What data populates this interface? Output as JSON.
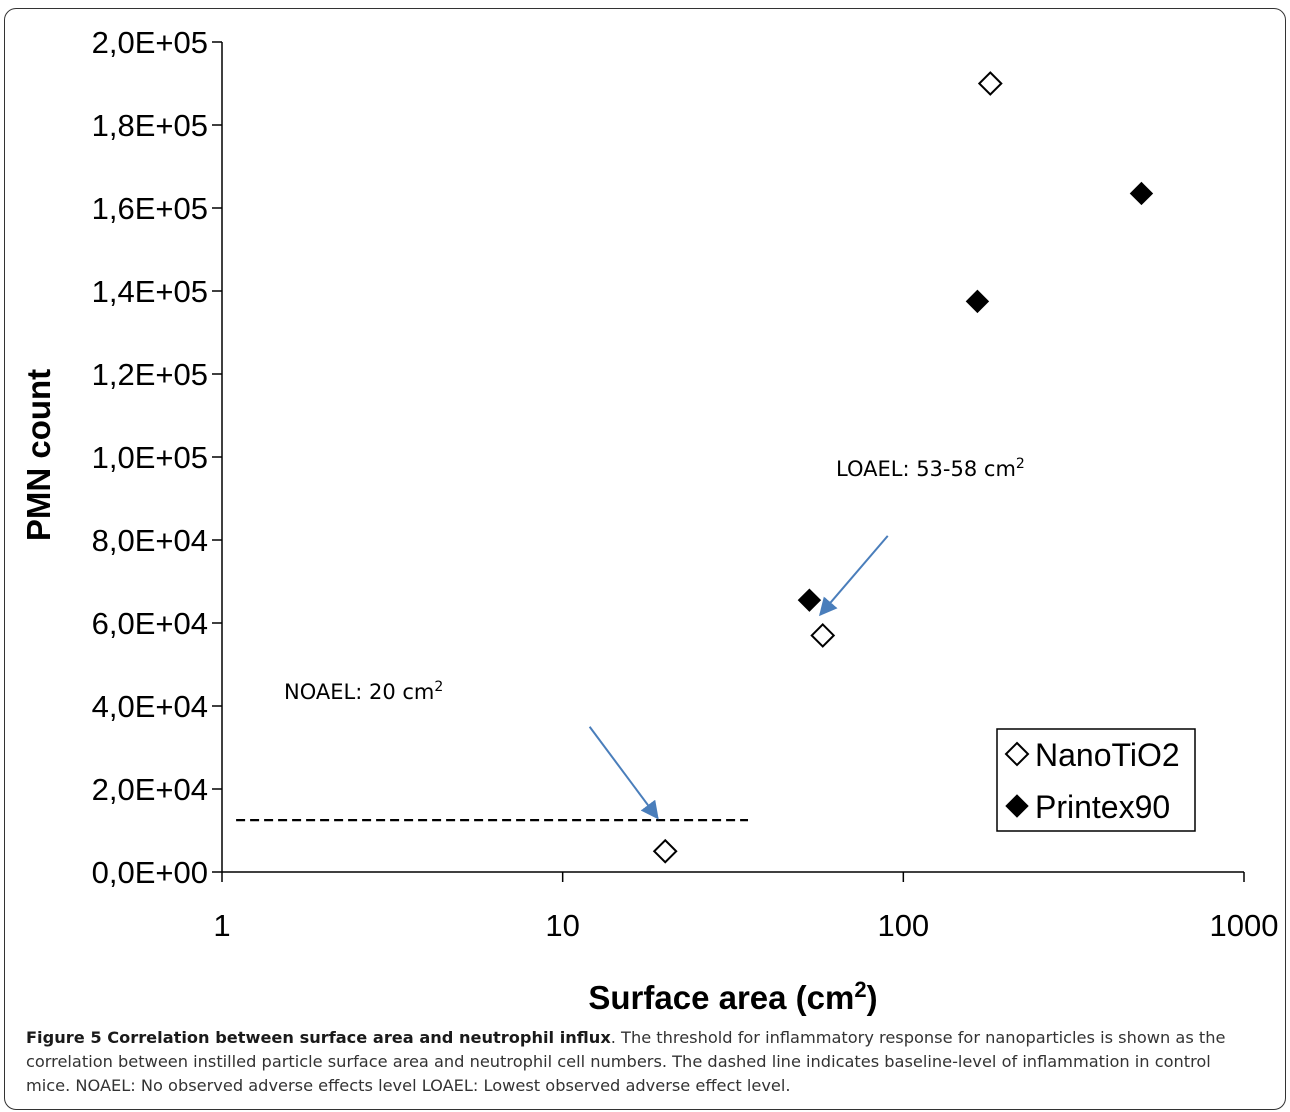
{
  "chart_data": {
    "type": "scatter",
    "xscale": "log",
    "xlim": [
      1,
      1000
    ],
    "ylim": [
      0,
      200000
    ],
    "xlabel": "Surface area (cm",
    "xlabel_sup": "2",
    "xlabel_end": ")",
    "ylabel": "PMN count",
    "x_ticks": [
      "1",
      "10",
      "100",
      "1000"
    ],
    "x_tick_values": [
      1,
      10,
      100,
      1000
    ],
    "y_ticks": [
      "0,0E+00",
      "2,0E+04",
      "4,0E+04",
      "6,0E+04",
      "8,0E+04",
      "1,0E+05",
      "1,2E+05",
      "1,4E+05",
      "1,6E+05",
      "1,8E+05",
      "2,0E+05"
    ],
    "y_tick_values": [
      0,
      20000,
      40000,
      60000,
      80000,
      100000,
      120000,
      140000,
      160000,
      180000,
      200000
    ],
    "grid": false,
    "legend_position": "bottom-right",
    "series": [
      {
        "name": "NanoTiO2",
        "marker": "open-diamond",
        "color": "#000000",
        "points": [
          {
            "x": 20,
            "y": 5000
          },
          {
            "x": 58,
            "y": 57000
          },
          {
            "x": 180,
            "y": 190000
          }
        ]
      },
      {
        "name": "Printex90",
        "marker": "filled-diamond",
        "color": "#000000",
        "points": [
          {
            "x": 53,
            "y": 65500
          },
          {
            "x": 165,
            "y": 137500
          },
          {
            "x": 500,
            "y": 163500
          }
        ]
      }
    ],
    "baseline": {
      "y": 12500,
      "x_start": 1.1,
      "x_end": 35,
      "style": "dashed"
    },
    "annotations": [
      {
        "id": "noael",
        "text": "NOAEL: 20 cm",
        "sup": "2",
        "arrow_from": {
          "x": 12,
          "y": 35000
        },
        "arrow_to": {
          "x": 19,
          "y": 13000
        }
      },
      {
        "id": "loael",
        "text": "LOAEL: 53-58 cm",
        "sup": "2",
        "arrow_from": {
          "x": 90,
          "y": 81000
        },
        "arrow_to": {
          "x": 57,
          "y": 62000
        }
      }
    ],
    "arrow_color": "#4a7ebb"
  },
  "caption": {
    "title": "Figure 5 Correlation between surface area and neutrophil influx",
    "text": ". The threshold for inflammatory response for nanoparticles is shown as the correlation between instilled particle surface area and neutrophil cell numbers. The dashed line indicates baseline-level of inflammation in control mice. NOAEL: No observed adverse effects level LOAEL: Lowest observed adverse effect level."
  }
}
